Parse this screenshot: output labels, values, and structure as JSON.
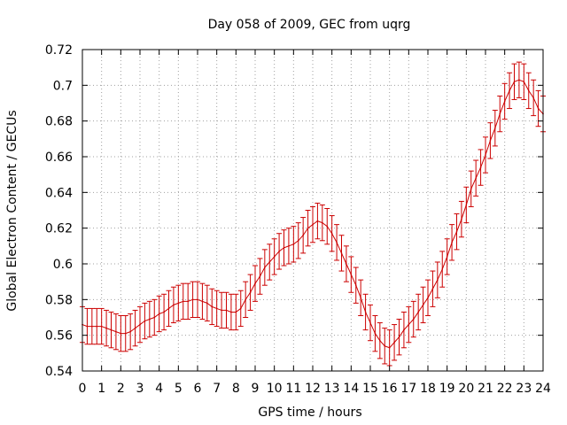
{
  "chart_data": {
    "type": "line",
    "title": "Day 058 of 2009, GEC from uqrg",
    "xlabel": "GPS time / hours",
    "ylabel": "Global Electron Content / GECUs",
    "xlim": [
      0,
      24
    ],
    "ylim": [
      0.54,
      0.72
    ],
    "x_ticks": [
      "0",
      "1",
      "2",
      "3",
      "4",
      "5",
      "6",
      "7",
      "8",
      "9",
      "10",
      "11",
      "12",
      "13",
      "14",
      "15",
      "16",
      "17",
      "18",
      "19",
      "20",
      "21",
      "22",
      "23",
      "24"
    ],
    "y_ticks": [
      "0.54",
      "0.56",
      "0.58",
      "0.6",
      "0.62",
      "0.64",
      "0.66",
      "0.68",
      "0.7",
      "0.72"
    ],
    "grid": true,
    "error_bar_halfwidth": 0.01,
    "series": [
      {
        "color": "#cc0000",
        "x": [
          0,
          0.25,
          0.5,
          0.75,
          1,
          1.25,
          1.5,
          1.75,
          2,
          2.25,
          2.5,
          2.75,
          3,
          3.25,
          3.5,
          3.75,
          4,
          4.25,
          4.5,
          4.75,
          5,
          5.25,
          5.5,
          5.75,
          6,
          6.25,
          6.5,
          6.75,
          7,
          7.25,
          7.5,
          7.75,
          8,
          8.25,
          8.5,
          8.75,
          9,
          9.25,
          9.5,
          9.75,
          10,
          10.25,
          10.5,
          10.75,
          11,
          11.25,
          11.5,
          11.75,
          12,
          12.25,
          12.5,
          12.75,
          13,
          13.25,
          13.5,
          13.75,
          14,
          14.25,
          14.5,
          14.75,
          15,
          15.25,
          15.5,
          15.75,
          16,
          16.25,
          16.5,
          16.75,
          17,
          17.25,
          17.5,
          17.75,
          18,
          18.25,
          18.5,
          18.75,
          19,
          19.25,
          19.5,
          19.75,
          20,
          20.25,
          20.5,
          20.75,
          21,
          21.25,
          21.5,
          21.75,
          22,
          22.25,
          22.5,
          22.75,
          23,
          23.25,
          23.5,
          23.75,
          24
        ],
        "y": [
          0.566,
          0.565,
          0.565,
          0.565,
          0.565,
          0.564,
          0.563,
          0.562,
          0.561,
          0.561,
          0.562,
          0.564,
          0.566,
          0.568,
          0.569,
          0.57,
          0.572,
          0.573,
          0.575,
          0.577,
          0.578,
          0.579,
          0.579,
          0.58,
          0.58,
          0.579,
          0.578,
          0.576,
          0.575,
          0.574,
          0.574,
          0.573,
          0.573,
          0.575,
          0.58,
          0.584,
          0.589,
          0.593,
          0.598,
          0.601,
          0.604,
          0.607,
          0.609,
          0.61,
          0.611,
          0.613,
          0.616,
          0.62,
          0.622,
          0.624,
          0.623,
          0.621,
          0.617,
          0.612,
          0.606,
          0.6,
          0.594,
          0.588,
          0.581,
          0.573,
          0.567,
          0.561,
          0.557,
          0.554,
          0.553,
          0.556,
          0.559,
          0.563,
          0.566,
          0.569,
          0.573,
          0.577,
          0.581,
          0.586,
          0.591,
          0.597,
          0.604,
          0.612,
          0.618,
          0.625,
          0.633,
          0.642,
          0.648,
          0.654,
          0.661,
          0.669,
          0.676,
          0.684,
          0.691,
          0.697,
          0.702,
          0.703,
          0.702,
          0.697,
          0.693,
          0.687,
          0.684
        ]
      }
    ]
  }
}
